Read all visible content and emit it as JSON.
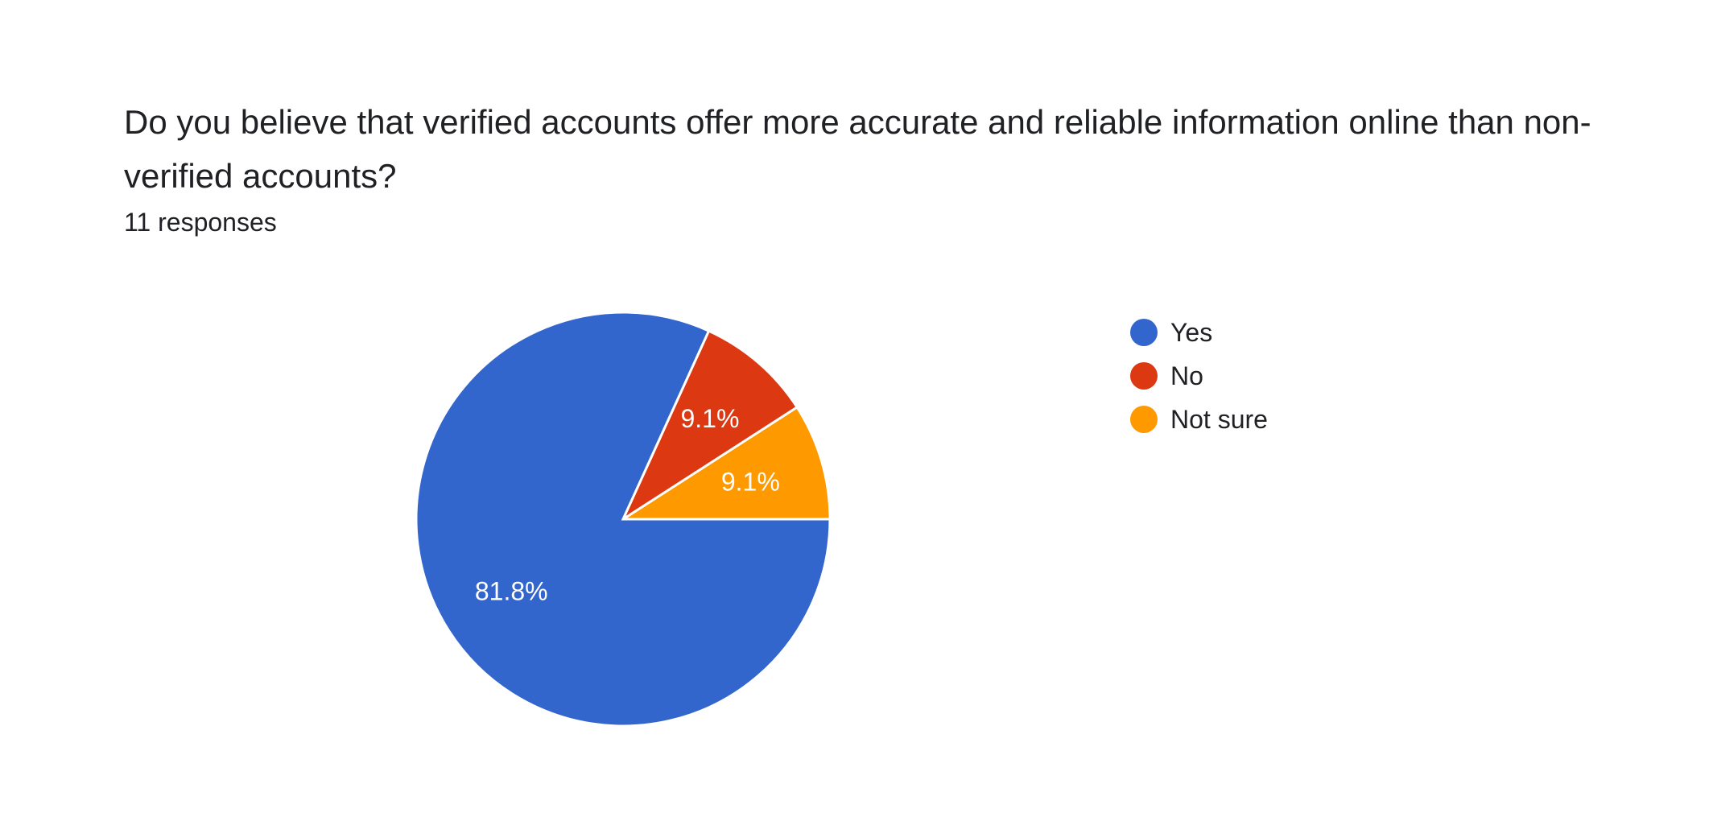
{
  "question": {
    "title": "Do you believe that verified accounts offer more accurate and reliable information online than non-verified accounts?",
    "responses_text": "11 responses"
  },
  "chart_data": {
    "type": "pie",
    "categories": [
      "Yes",
      "No",
      "Not sure"
    ],
    "values": [
      81.8,
      9.1,
      9.1
    ],
    "labels": [
      "81.8%",
      "9.1%",
      "9.1%"
    ],
    "colors": [
      "#3366cc",
      "#dc3912",
      "#ff9900"
    ],
    "title": "Do you believe that verified accounts offer more accurate and reliable information online than non-verified accounts?",
    "legend_position": "right"
  }
}
